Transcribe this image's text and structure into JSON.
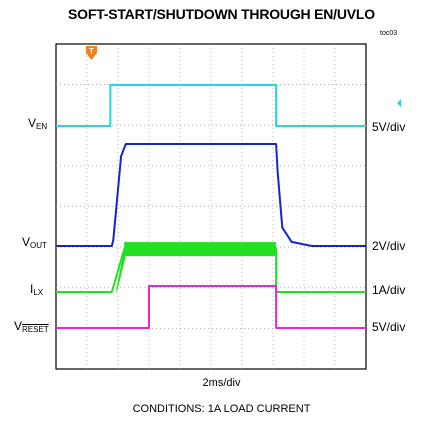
{
  "chart_data": {
    "type": "line",
    "title": "SOFT-START/SHUTDOWN THROUGH EN/UVLO",
    "figure_id": "toc03",
    "time_scale": "2ms/div",
    "caption": "CONDITIONS: 1A LOAD CURRENT",
    "trigger_marker": "T",
    "x": [
      0,
      2,
      4,
      6,
      8,
      10,
      12,
      14,
      16,
      18,
      20
    ],
    "xlim": [
      0,
      20
    ],
    "series": [
      {
        "id": "ven",
        "name_main": "V",
        "name_sub": "EN",
        "scale": "5V/div",
        "color": "#2ad4e0",
        "waveform": [
          [
            0,
            0
          ],
          [
            3.5,
            0
          ],
          [
            3.5,
            5
          ],
          [
            14.2,
            5
          ],
          [
            14.2,
            0
          ],
          [
            20,
            0
          ]
        ]
      },
      {
        "id": "vout",
        "name_main": "V",
        "name_sub": "OUT",
        "scale": "2V/div",
        "color": "#1226cc",
        "waveform": [
          [
            0,
            0
          ],
          [
            3.6,
            0
          ],
          [
            3.7,
            0.3
          ],
          [
            4.2,
            4.4
          ],
          [
            4.5,
            5.0
          ],
          [
            14.2,
            5.0
          ],
          [
            14.3,
            3.6
          ],
          [
            14.6,
            0.9
          ],
          [
            15.2,
            0.2
          ],
          [
            16.5,
            0
          ],
          [
            20,
            0
          ]
        ]
      },
      {
        "id": "ilx",
        "name_main": "I",
        "name_sub": "LX",
        "scale": "1A/div",
        "color": "#22e022",
        "waveform": [
          [
            0,
            0
          ],
          [
            3.6,
            0
          ],
          [
            4.4,
            1.1
          ],
          [
            14.2,
            1.1
          ],
          [
            14.2,
            0
          ],
          [
            20,
            0
          ]
        ]
      },
      {
        "id": "vreset",
        "name_main": "V",
        "name_sub": "RESET",
        "scale": "5V/div",
        "color": "#e428d8",
        "waveform": [
          [
            0,
            0
          ],
          [
            6.0,
            0
          ],
          [
            6.0,
            5
          ],
          [
            14.2,
            5
          ],
          [
            14.2,
            0
          ],
          [
            20,
            0
          ]
        ]
      }
    ]
  }
}
